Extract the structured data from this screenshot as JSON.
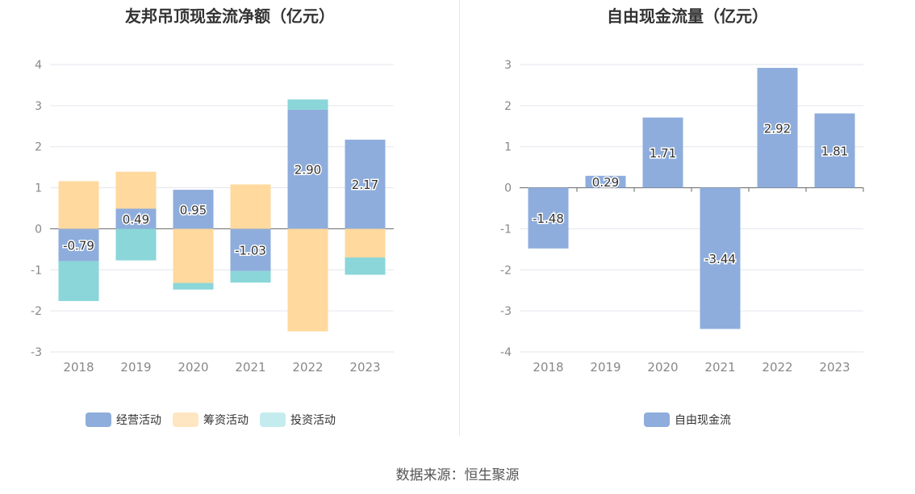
{
  "chart_data": [
    {
      "type": "bar",
      "stacked": true,
      "title": "友邦吊顶现金流净额（亿元）",
      "categories": [
        "2018",
        "2019",
        "2020",
        "2021",
        "2022",
        "2023"
      ],
      "series": [
        {
          "name": "经营活动",
          "color": "#8eaddc",
          "values": [
            -0.79,
            0.49,
            0.95,
            -1.03,
            2.9,
            2.17
          ],
          "labels": [
            "-0.79",
            "0.49",
            "0.95",
            "-1.03",
            "2.90",
            "2.17"
          ]
        },
        {
          "name": "筹资活动",
          "color": "#ffd99e",
          "values": [
            1.16,
            0.9,
            -1.32,
            1.08,
            -2.5,
            -0.7
          ]
        },
        {
          "name": "投资活动",
          "color": "#8ad6d9",
          "values": [
            -0.97,
            -0.77,
            -0.16,
            -0.28,
            0.25,
            -0.42
          ]
        }
      ],
      "ylim": [
        -3,
        4
      ],
      "yticks": [
        -3,
        -2,
        -1,
        0,
        1,
        2,
        3,
        4
      ],
      "grid": true,
      "legend": "bottom"
    },
    {
      "type": "bar",
      "title": "自由现金流量（亿元）",
      "categories": [
        "2018",
        "2019",
        "2020",
        "2021",
        "2022",
        "2023"
      ],
      "series": [
        {
          "name": "自由现金流",
          "color": "#8eaddc",
          "values": [
            -1.48,
            0.29,
            1.71,
            -3.44,
            2.92,
            1.81
          ],
          "labels": [
            "-1.48",
            "0.29",
            "1.71",
            "-3.44",
            "2.92",
            "1.81"
          ]
        }
      ],
      "ylim": [
        -4,
        3
      ],
      "yticks": [
        -4,
        -3,
        -2,
        -1,
        0,
        1,
        2,
        3
      ],
      "grid": true,
      "legend": "bottom"
    }
  ],
  "source": "数据来源：恒生聚源"
}
